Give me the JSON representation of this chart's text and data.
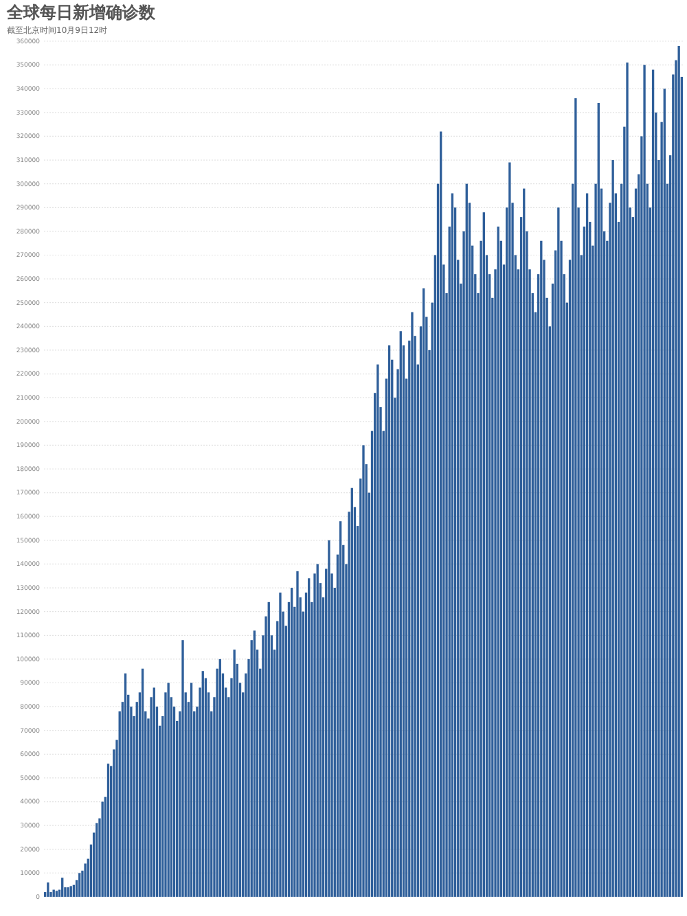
{
  "chart_data": {
    "type": "bar",
    "title": "全球每日新增确诊数",
    "subtitle": "截至北京时间10月9日12时",
    "color": "#2f5f9a",
    "grid": "y",
    "ylim": [
      0,
      360000
    ],
    "yticks": [
      0,
      10000,
      20000,
      30000,
      40000,
      50000,
      60000,
      70000,
      80000,
      90000,
      100000,
      110000,
      120000,
      130000,
      140000,
      150000,
      160000,
      170000,
      180000,
      190000,
      200000,
      210000,
      220000,
      230000,
      240000,
      250000,
      260000,
      270000,
      280000,
      290000,
      300000,
      310000,
      320000,
      330000,
      340000,
      350000,
      360000
    ],
    "categories": [
      null,
      null,
      null,
      null,
      null,
      null,
      null,
      null,
      null,
      null,
      null,
      null,
      null,
      null,
      null,
      null,
      null,
      null,
      null,
      null,
      null,
      null,
      null,
      null,
      null,
      null,
      null,
      null,
      null,
      null,
      null,
      null,
      null,
      null,
      null,
      null,
      null,
      null,
      null,
      null,
      null,
      null,
      null,
      null,
      null,
      null,
      null,
      null,
      null,
      null,
      null,
      null,
      null,
      null,
      null,
      null,
      null,
      null,
      null,
      null,
      null,
      null,
      null,
      null,
      null,
      null,
      null,
      null,
      null,
      null,
      null,
      null,
      null,
      null,
      null,
      null,
      null,
      null,
      null,
      null,
      null,
      null,
      null,
      null,
      null,
      null,
      null,
      null,
      null,
      null,
      null,
      null,
      null,
      null,
      null,
      null,
      null,
      null,
      null,
      null,
      null,
      null,
      null,
      null,
      null,
      null,
      null,
      null,
      null,
      null,
      null,
      null,
      null,
      null,
      null,
      null,
      null,
      null,
      null,
      null,
      null,
      null,
      null,
      null,
      null,
      null,
      null,
      null,
      null,
      null,
      null,
      null,
      null,
      null,
      null,
      null,
      null,
      null,
      null,
      null,
      null,
      null,
      null,
      null,
      null,
      null,
      null,
      null,
      null,
      null,
      null,
      null,
      null,
      null,
      null,
      null,
      null,
      null,
      null,
      null,
      null,
      null,
      null,
      null,
      null,
      null,
      null,
      null,
      null,
      null,
      null,
      null,
      null,
      null,
      null,
      null,
      null,
      null,
      null,
      null,
      null,
      null,
      null,
      null,
      null,
      null,
      null,
      null,
      null,
      null,
      null,
      null,
      null,
      null,
      null,
      null,
      null,
      null,
      null,
      null,
      null,
      null,
      null,
      null,
      null,
      null,
      null,
      null,
      null,
      null,
      null,
      null,
      null,
      null,
      null,
      null,
      null,
      null,
      null,
      null,
      null,
      null,
      null
    ],
    "values": [
      2000,
      6000,
      2000,
      3000,
      2500,
      3000,
      8000,
      4000,
      4000,
      4500,
      5000,
      7000,
      10000,
      11000,
      14000,
      16000,
      22000,
      27000,
      31000,
      33000,
      40000,
      42000,
      56000,
      55000,
      62000,
      66000,
      78000,
      82000,
      94000,
      85000,
      80000,
      76000,
      82000,
      86000,
      96000,
      78000,
      75000,
      84000,
      88000,
      80000,
      72000,
      76000,
      86000,
      90000,
      84000,
      80000,
      74000,
      78000,
      108000,
      86000,
      82000,
      90000,
      78000,
      80000,
      88000,
      95000,
      92000,
      86000,
      78000,
      84000,
      96000,
      100000,
      94000,
      88000,
      84000,
      92000,
      104000,
      98000,
      90000,
      86000,
      94000,
      100000,
      108000,
      112000,
      104000,
      96000,
      110000,
      118000,
      124000,
      110000,
      104000,
      116000,
      128000,
      120000,
      114000,
      124000,
      130000,
      122000,
      137000,
      126000,
      120000,
      128000,
      134000,
      124000,
      136000,
      140000,
      132000,
      126000,
      138000,
      150000,
      136000,
      130000,
      144000,
      158000,
      148000,
      140000,
      162000,
      172000,
      164000,
      156000,
      176000,
      190000,
      182000,
      170000,
      196000,
      212000,
      224000,
      206000,
      196000,
      218000,
      232000,
      226000,
      210000,
      222000,
      238000,
      232000,
      218000,
      234000,
      246000,
      236000,
      224000,
      240000,
      256000,
      244000,
      230000,
      250000,
      270000,
      300000,
      322000,
      266000,
      254000,
      282000,
      296000,
      290000,
      268000,
      258000,
      280000,
      300000,
      292000,
      274000,
      262000,
      254000,
      276000,
      288000,
      270000,
      262000,
      252000,
      264000,
      282000,
      276000,
      266000,
      290000,
      309000,
      292000,
      270000,
      264000,
      286000,
      298000,
      280000,
      264000,
      254000,
      246000,
      262000,
      276000,
      268000,
      252000,
      240000,
      258000,
      272000,
      290000,
      276000,
      262000,
      250000,
      268000,
      300000,
      336000,
      290000,
      270000,
      282000,
      296000,
      284000,
      274000,
      300000,
      334000,
      298000,
      280000,
      276000,
      292000,
      310000,
      296000,
      284000,
      300000,
      324000,
      351000,
      290000,
      286000,
      298000,
      304000,
      320000,
      350000,
      300000,
      290000,
      348000,
      330000,
      310000,
      326000,
      340000,
      300000,
      312000,
      346000,
      352000,
      358000,
      345000
    ]
  }
}
